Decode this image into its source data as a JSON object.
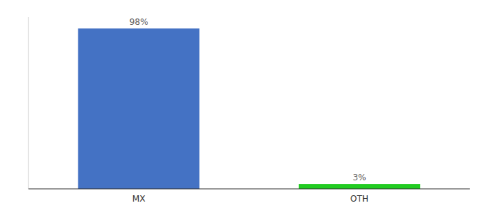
{
  "chart_data": {
    "type": "bar",
    "categories": [
      "MX",
      "OTH"
    ],
    "values": [
      98,
      3
    ],
    "value_labels": [
      "98%",
      "3%"
    ],
    "colors": [
      "#4472c4",
      "#22cc22"
    ],
    "ylim": [
      0,
      105
    ],
    "data_labels": true,
    "tick_labels": "x",
    "grid": false
  }
}
